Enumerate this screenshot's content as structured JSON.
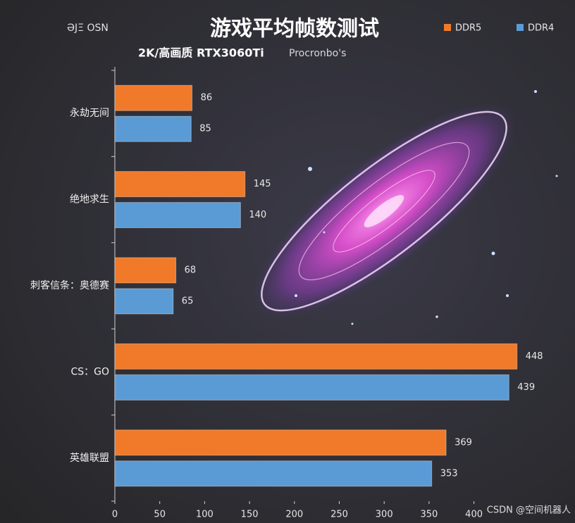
{
  "chart_data": {
    "type": "barh",
    "title": "游戏平均帧数测试",
    "subtitle": "2K/高画质 RTX3060Ti",
    "annotations": [
      "ƏJΞ OSN",
      "Procronbo's",
      "CSDN @空间机器人"
    ],
    "categories": [
      "永劫无间",
      "绝地求生",
      "刺客信条：奥德赛",
      "CS：GO",
      "英雄联盟"
    ],
    "series": [
      {
        "name": "DDR5",
        "color": "#f07a2a",
        "values": [
          86,
          145,
          68,
          448,
          369
        ]
      },
      {
        "name": "DDR4",
        "color": "#5b9bd5",
        "values": [
          85,
          140,
          65,
          439,
          353
        ]
      }
    ],
    "xlim": [
      0,
      500
    ],
    "xticks": [
      0,
      50,
      100,
      150,
      200,
      250,
      300,
      350,
      400
    ],
    "legend": "top-right"
  }
}
